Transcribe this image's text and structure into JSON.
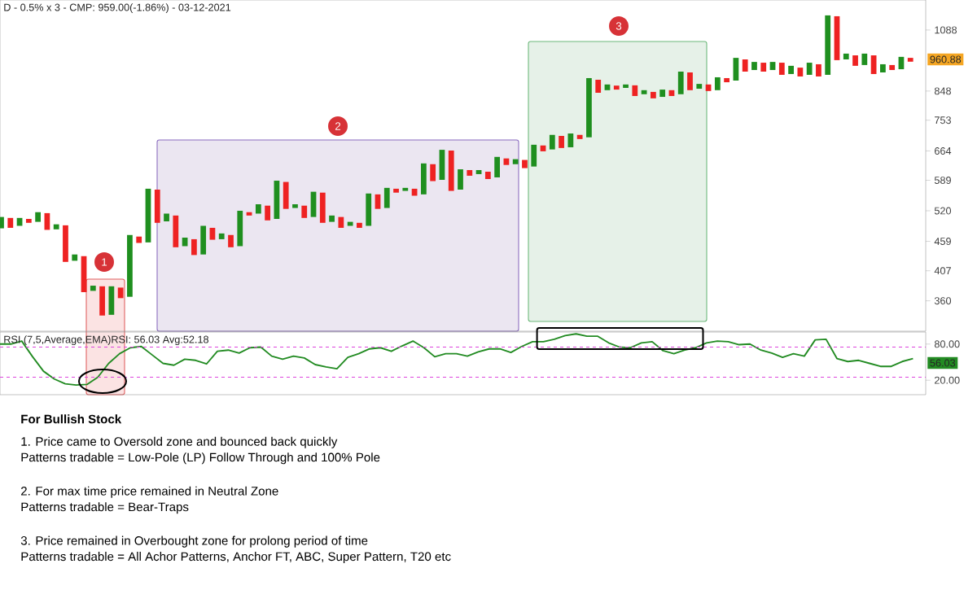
{
  "chart_data": [
    {
      "type": "bar",
      "title": "D - 0.5% x 3 - CMP: 959.00(-1.86%) - 03-12-2021",
      "categories": [
        null,
        null,
        null,
        null,
        null,
        null,
        null,
        null,
        null,
        null,
        null,
        null,
        null,
        null,
        null,
        null,
        null,
        null,
        null,
        null,
        null,
        null,
        null,
        null,
        null,
        null,
        null,
        null,
        null,
        null,
        null,
        null,
        null,
        null,
        null,
        null,
        null,
        null,
        null,
        null,
        null,
        null,
        null,
        null,
        null,
        null,
        null,
        null,
        null,
        null,
        null,
        null,
        null,
        null,
        null,
        null,
        null,
        null,
        null,
        null,
        null,
        null,
        null,
        null,
        null,
        null,
        null,
        null,
        null,
        null,
        null,
        null,
        null,
        null,
        null,
        null,
        null,
        null,
        null,
        null,
        null,
        null,
        null,
        null,
        null,
        null,
        null,
        null,
        null,
        null,
        null,
        null,
        null,
        null,
        null,
        null,
        null,
        null,
        null,
        null
      ],
      "base": [
        484,
        485,
        489,
        495,
        497,
        481,
        482,
        422,
        424,
        373,
        375,
        339,
        340,
        364,
        366,
        456,
        457,
        495,
        498,
        448,
        450,
        434,
        435,
        462,
        463,
        448,
        450,
        510,
        514,
        500,
        503,
        524,
        526,
        505,
        507,
        495,
        497,
        485,
        489,
        485,
        489,
        524,
        526,
        560,
        564,
        553,
        556,
        587,
        590,
        564,
        567,
        600,
        604,
        592,
        596,
        627,
        629,
        619,
        623,
        663,
        668,
        672,
        674,
        697,
        702,
        842,
        851,
        853,
        859,
        831,
        837,
        823,
        828,
        831,
        837,
        851,
        856,
        848,
        851,
        879,
        885,
        918,
        924,
        918,
        924,
        906,
        909,
        900,
        906,
        900,
        906,
        962,
        965,
        940,
        943,
        909,
        915,
        924,
        927,
        956
      ],
      "values": [
        23,
        20,
        16,
        8,
        20,
        34,
        10,
        68,
        11,
        59,
        8,
        43,
        42,
        16,
        105,
        12,
        112,
        72,
        16,
        62,
        16,
        29,
        54,
        23,
        11,
        23,
        70,
        7,
        20,
        31,
        85,
        61,
        8,
        26,
        55,
        65,
        13,
        22,
        8,
        10,
        69,
        32,
        45,
        9,
        7,
        16,
        75,
        42,
        77,
        101,
        49,
        14,
        10,
        18,
        52,
        17,
        13,
        21,
        58,
        16,
        41,
        34,
        39,
        12,
        192,
        46,
        20,
        14,
        12,
        37,
        14,
        22,
        25,
        20,
        81,
        64,
        17,
        23,
        46,
        15,
        86,
        47,
        31,
        34,
        31,
        46,
        31,
        33,
        46,
        46,
        249,
        189,
        23,
        41,
        45,
        72,
        31,
        19,
        48,
        15
      ],
      "colors": [
        "#1f8f1f",
        "#ee2222",
        "#1f8f1f",
        "#ee2222",
        "#1f8f1f",
        "#ee2222",
        "#1f8f1f",
        "#ee2222",
        "#1f8f1f",
        "#ee2222",
        "#1f8f1f",
        "#ee2222",
        "#1f8f1f",
        "#ee2222",
        "#1f8f1f",
        "#ee2222",
        "#1f8f1f",
        "#ee2222",
        "#1f8f1f",
        "#ee2222",
        "#1f8f1f",
        "#ee2222",
        "#1f8f1f",
        "#ee2222",
        "#1f8f1f",
        "#ee2222",
        "#1f8f1f",
        "#ee2222",
        "#1f8f1f",
        "#ee2222",
        "#1f8f1f",
        "#ee2222",
        "#1f8f1f",
        "#ee2222",
        "#1f8f1f",
        "#ee2222",
        "#1f8f1f",
        "#ee2222",
        "#1f8f1f",
        "#ee2222",
        "#1f8f1f",
        "#ee2222",
        "#1f8f1f",
        "#ee2222",
        "#1f8f1f",
        "#ee2222",
        "#1f8f1f",
        "#ee2222",
        "#1f8f1f",
        "#ee2222",
        "#1f8f1f",
        "#ee2222",
        "#1f8f1f",
        "#ee2222",
        "#1f8f1f",
        "#ee2222",
        "#1f8f1f",
        "#ee2222",
        "#1f8f1f",
        "#ee2222",
        "#1f8f1f",
        "#ee2222",
        "#1f8f1f",
        "#ee2222",
        "#1f8f1f",
        "#ee2222",
        "#1f8f1f",
        "#ee2222",
        "#1f8f1f",
        "#ee2222",
        "#1f8f1f",
        "#ee2222",
        "#1f8f1f",
        "#ee2222",
        "#1f8f1f",
        "#ee2222",
        "#1f8f1f",
        "#ee2222",
        "#1f8f1f",
        "#ee2222",
        "#1f8f1f",
        "#ee2222",
        "#1f8f1f",
        "#ee2222",
        "#1f8f1f",
        "#ee2222",
        "#1f8f1f",
        "#ee2222",
        "#1f8f1f",
        "#ee2222",
        "#1f8f1f",
        "#ee2222",
        "#1f8f1f",
        "#ee2222",
        "#1f8f1f",
        "#ee2222",
        "#1f8f1f",
        "#ee2222",
        "#1f8f1f",
        "#ee2222"
      ],
      "log": true,
      "ylim": [
        318,
        1230
      ],
      "yticks": [
        360,
        407,
        459,
        520,
        589,
        664,
        753,
        848,
        1088
      ],
      "tick_labels": "y",
      "annotations": [
        "1",
        "2",
        "3",
        "960.88"
      ]
    },
    {
      "type": "line",
      "title": "RSI (7,5,Average,EMA)RSI: 56.03 Avg:52.18",
      "categories": [
        null,
        null,
        null,
        null,
        null,
        null,
        null,
        null,
        null,
        null,
        null,
        null,
        null,
        null,
        null,
        null,
        null,
        null,
        null,
        null,
        null,
        null,
        null,
        null,
        null,
        null,
        null,
        null,
        null,
        null,
        null,
        null,
        null,
        null,
        null,
        null,
        null,
        null,
        null,
        null,
        null,
        null,
        null,
        null,
        null,
        null,
        null,
        null,
        null,
        null,
        null,
        null,
        null,
        null,
        null,
        null,
        null,
        null,
        null,
        null,
        null,
        null,
        null,
        null,
        null,
        null,
        null,
        null,
        null,
        null,
        null,
        null,
        null,
        null,
        null,
        null,
        null,
        null,
        null,
        null,
        null,
        null,
        null,
        null,
        null
      ],
      "values": [
        80,
        80,
        85,
        59,
        35,
        22,
        14,
        12,
        13,
        25,
        48,
        64,
        74,
        76,
        62,
        48,
        45,
        55,
        53,
        47,
        68,
        70,
        65,
        74,
        75,
        60,
        55,
        60,
        57,
        46,
        42,
        39,
        58,
        64,
        72,
        74,
        68,
        77,
        85,
        74,
        59,
        64,
        64,
        60,
        67,
        72,
        72,
        66,
        76,
        84,
        84,
        88,
        94,
        97,
        93,
        93,
        82,
        75,
        74,
        82,
        84,
        69,
        64,
        70,
        74,
        82,
        85,
        84,
        79,
        80,
        70,
        65,
        58,
        64,
        60,
        87,
        88,
        56,
        51,
        53,
        48,
        43,
        43,
        51,
        56
      ],
      "color": "#228b22",
      "ylim": [
        -4,
        100
      ],
      "yticks": [
        {
          "value": 20,
          "label": "20.00"
        },
        {
          "value": 80,
          "label": "80.00"
        }
      ],
      "tick_labels": "y",
      "ref_lines": [
        {
          "axis": "y",
          "value": 75,
          "color": "#dd44dd",
          "line_style": "dashed"
        },
        {
          "axis": "y",
          "value": 25,
          "color": "#dd44dd",
          "line_style": "dashed"
        }
      ],
      "annotations": [
        "56.03",
        "For Bullish Stock",
        "1. Price came to Oversold zone and bounced back quickly",
        "Patterns tradable = Low-Pole (LP) Follow Through and 100% Pole",
        "2. For max time price remained in Neutral Zone",
        "Patterns tradable = Bear-Traps",
        "3. Price remained in Overbought zone for prolong period of time",
        "Patterns tradable = All Achor Patterns, Anchor FT, ABC, Super Pattern, T20 etc"
      ]
    }
  ]
}
